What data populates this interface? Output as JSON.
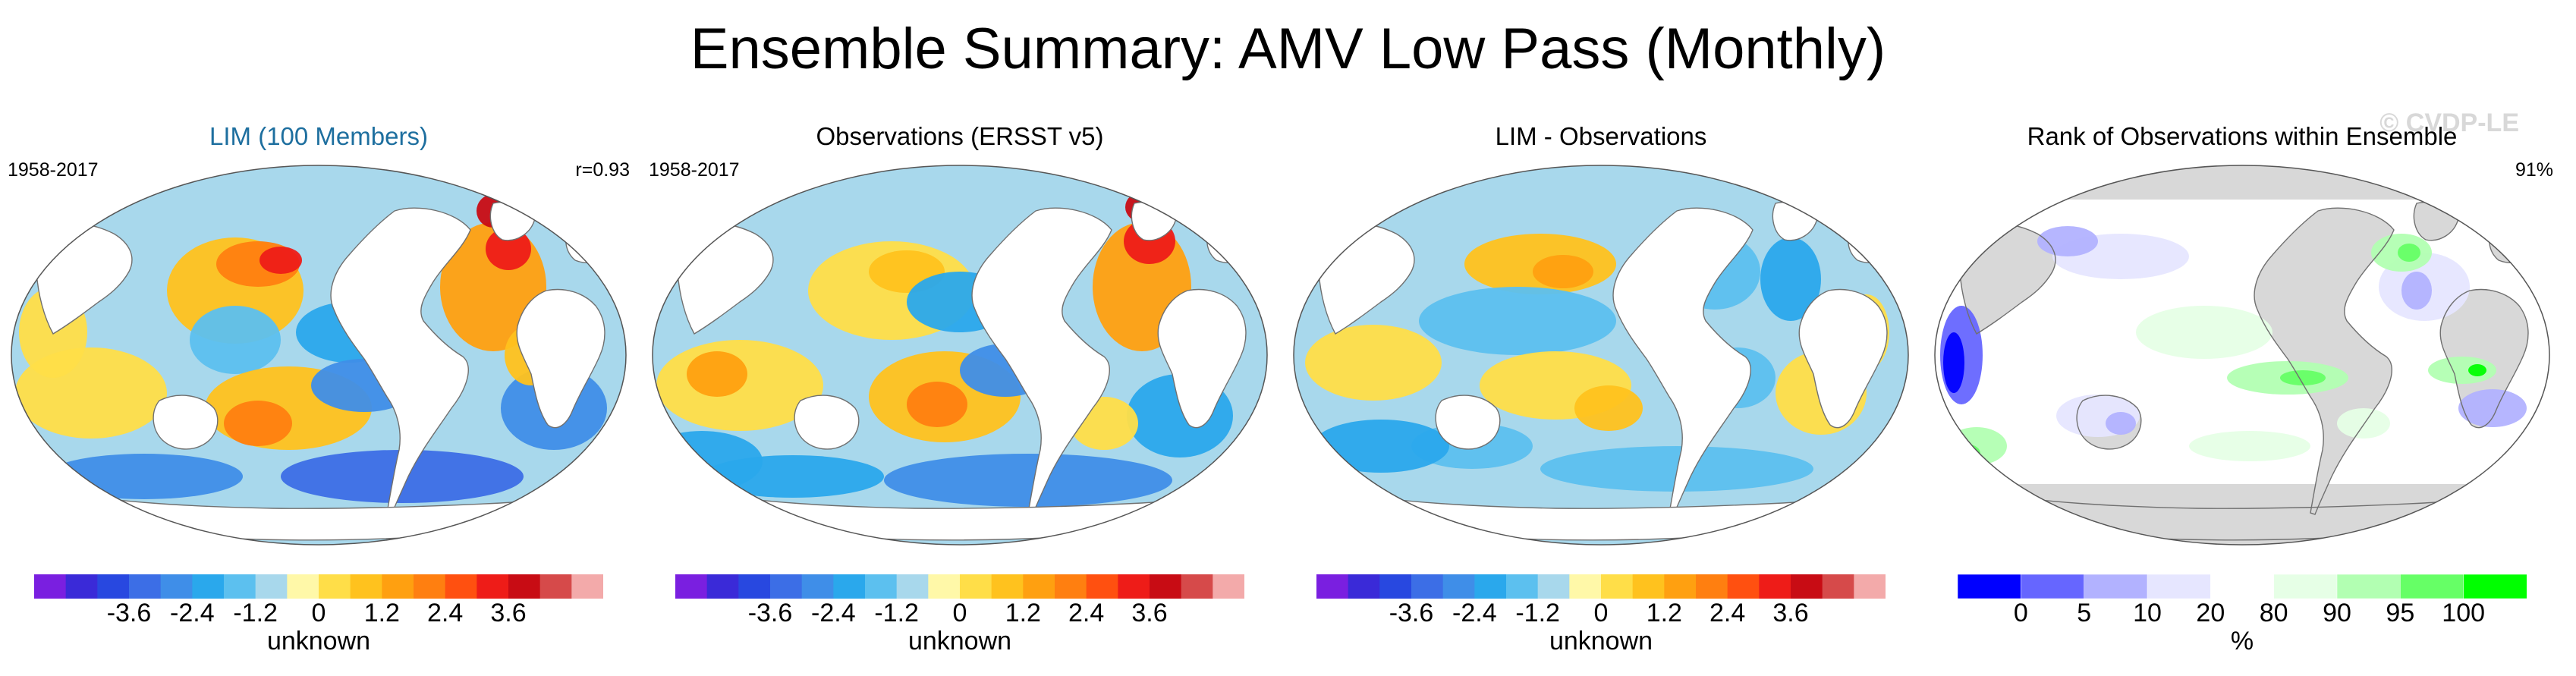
{
  "title": "Ensemble Summary: AMV Low Pass (Monthly)",
  "copyright": "© CVDP-LE",
  "colors": {
    "diverging": [
      "#7a1fe0",
      "#3a2ad8",
      "#2848e0",
      "#3c6ee6",
      "#3f8ee8",
      "#2aa8ec",
      "#5cc0ef",
      "#a8d8ec",
      "#fff8a8",
      "#ffde48",
      "#ffc21e",
      "#ffa010",
      "#ff7f10",
      "#ff5010",
      "#ee1c18",
      "#c80c14",
      "#d64a4a",
      "#f3aaaa"
    ],
    "rank": [
      "#0000ff",
      "#6666ff",
      "#b2b2ff",
      "#e6e6ff",
      "#ffffff",
      "#e6ffe6",
      "#b2ffb2",
      "#66ff66",
      "#00ff00"
    ],
    "land": "#d8d8d8",
    "coast": "#707070"
  },
  "panels": [
    {
      "title": "LIM (100 Members)",
      "left_label": "1958-2017",
      "right_label": "r=0.93",
      "colorbar_ticks": [
        "-3.6",
        "-2.4",
        "-1.2",
        "0",
        "1.2",
        "2.4",
        "3.6"
      ],
      "colorbar_label": "unknown",
      "map_icon": "world-map-icon"
    },
    {
      "title": "Observations (ERSST v5)",
      "left_label": "1958-2017",
      "right_label": "",
      "colorbar_ticks": [
        "-3.6",
        "-2.4",
        "-1.2",
        "0",
        "1.2",
        "2.4",
        "3.6"
      ],
      "colorbar_label": "unknown",
      "map_icon": "world-map-icon"
    },
    {
      "title": "LIM - Observations",
      "left_label": "",
      "right_label": "",
      "colorbar_ticks": [
        "-3.6",
        "-2.4",
        "-1.2",
        "0",
        "1.2",
        "2.4",
        "3.6"
      ],
      "colorbar_label": "unknown",
      "map_icon": "world-map-icon"
    },
    {
      "title": "Rank of Observations within Ensemble",
      "left_label": "",
      "right_label": "91%",
      "colorbar_ticks": [
        "0",
        "5",
        "10",
        "20",
        "80",
        "90",
        "95",
        "100"
      ],
      "colorbar_label": "%",
      "map_icon": "world-map-icon"
    }
  ]
}
